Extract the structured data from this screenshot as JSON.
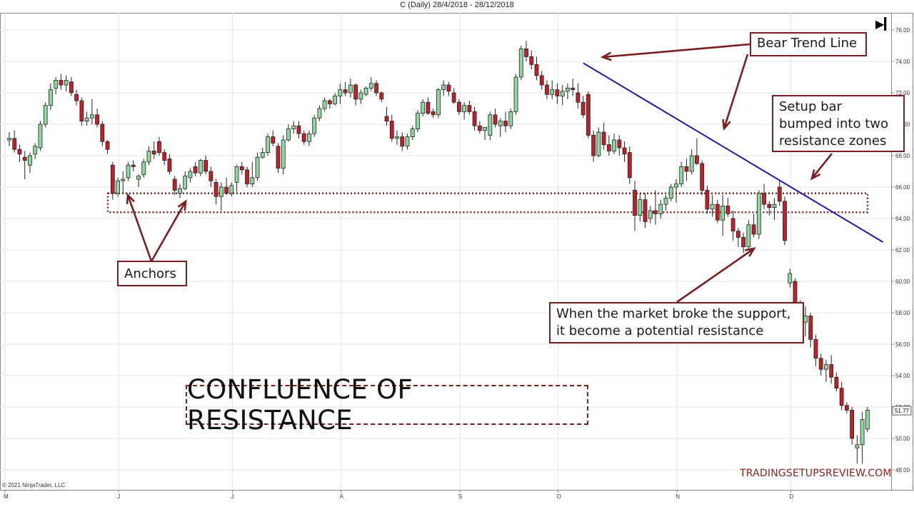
{
  "header": {
    "title": "C (Daily)  28/4/2018 - 28/12/2018"
  },
  "nav": {
    "end_icon": "skip-to-end-icon"
  },
  "copyright": "© 2021 NinjaTrader, LLC",
  "watermark": "TRADINGSETUPSREVIEW.COM",
  "title_box": "CONFLUENCE OF RESISTANCE",
  "annotations": {
    "bear_trend_line": "Bear Trend Line",
    "setup_bar": [
      "Setup bar",
      "bumped into two",
      "resistance zones"
    ],
    "anchors": "Anchors",
    "support_resistance": [
      "When the market broke the support,",
      "it become a potential resistance"
    ]
  },
  "colors": {
    "bull": "#8fd8a0",
    "bear": "#c0202a",
    "trend_line": "#1a1aa8",
    "annotation": "#7a1f1f"
  },
  "chart_data": {
    "type": "candlestick",
    "title": "C (Daily)  28/4/2018 - 28/12/2018",
    "y_ticks": [
      "76.00",
      "74.00",
      "72.00",
      "70.00",
      "68.00",
      "66.00",
      "64.00",
      "62.00",
      "60.00",
      "58.00",
      "56.00",
      "54.00",
      "52.00",
      "50.00",
      "48.00"
    ],
    "ylim": [
      47.3,
      77.0
    ],
    "x_labels": [
      {
        "label": "M",
        "index": 0
      },
      {
        "label": "J",
        "index": 22
      },
      {
        "label": "J",
        "index": 44
      },
      {
        "label": "A",
        "index": 65
      },
      {
        "label": "S",
        "index": 88
      },
      {
        "label": "O",
        "index": 107
      },
      {
        "label": "N",
        "index": 130
      },
      {
        "label": "D",
        "index": 152
      }
    ],
    "last_price": "51.77",
    "resistance_zone": [
      64.4,
      65.6
    ],
    "trend_line": {
      "from": {
        "index": 111,
        "price": 73.9
      },
      "to": {
        "index": 169,
        "price": 62.5
      }
    },
    "candles": [
      [
        69.0,
        69.5,
        68.6,
        69.1
      ],
      [
        69.1,
        69.6,
        68.2,
        68.4
      ],
      [
        68.4,
        68.7,
        67.6,
        68.1
      ],
      [
        67.9,
        68.3,
        66.5,
        67.7
      ],
      [
        67.4,
        68.2,
        66.9,
        68.0
      ],
      [
        68.1,
        68.8,
        67.8,
        68.6
      ],
      [
        68.5,
        70.2,
        68.3,
        70.0
      ],
      [
        70.0,
        71.4,
        69.8,
        71.2
      ],
      [
        71.2,
        72.6,
        70.9,
        72.2
      ],
      [
        72.3,
        73.0,
        71.9,
        72.8
      ],
      [
        72.8,
        73.2,
        72.2,
        72.5
      ],
      [
        72.5,
        73.1,
        72.1,
        72.8
      ],
      [
        72.7,
        73.0,
        71.8,
        72.0
      ],
      [
        71.9,
        72.2,
        71.2,
        71.5
      ],
      [
        71.5,
        71.7,
        69.9,
        70.2
      ],
      [
        70.2,
        70.8,
        69.9,
        70.4
      ],
      [
        70.4,
        71.6,
        70.0,
        70.6
      ],
      [
        70.6,
        71.0,
        69.8,
        70.0
      ],
      [
        70.0,
        70.2,
        68.6,
        68.9
      ],
      [
        68.9,
        69.0,
        68.1,
        68.4
      ],
      [
        67.4,
        67.6,
        65.2,
        65.6
      ],
      [
        65.6,
        66.6,
        65.4,
        66.4
      ],
      [
        66.4,
        67.0,
        65.6,
        66.5
      ],
      [
        66.6,
        67.6,
        66.4,
        67.4
      ],
      [
        67.4,
        67.7,
        67.0,
        67.3
      ],
      [
        66.5,
        66.8,
        66.0,
        66.7
      ],
      [
        66.8,
        67.8,
        66.6,
        67.6
      ],
      [
        67.6,
        68.6,
        67.4,
        68.3
      ],
      [
        68.3,
        68.9,
        67.8,
        68.1
      ],
      [
        68.9,
        69.2,
        68.0,
        68.2
      ],
      [
        68.2,
        68.4,
        67.4,
        67.7
      ],
      [
        67.8,
        68.1,
        66.8,
        67.0
      ],
      [
        66.5,
        66.7,
        65.5,
        65.8
      ],
      [
        65.6,
        66.2,
        65.3,
        65.9
      ],
      [
        65.9,
        67.0,
        65.8,
        66.7
      ],
      [
        66.6,
        67.2,
        66.3,
        67.0
      ],
      [
        67.3,
        67.6,
        66.7,
        66.9
      ],
      [
        66.9,
        67.8,
        66.7,
        67.7
      ],
      [
        67.7,
        68.0,
        66.8,
        67.0
      ],
      [
        67.0,
        67.3,
        66.0,
        66.4
      ],
      [
        66.3,
        66.5,
        64.9,
        65.4
      ],
      [
        65.4,
        66.3,
        64.5,
        66.0
      ],
      [
        66.0,
        66.6,
        65.5,
        65.6
      ],
      [
        65.6,
        66.3,
        65.4,
        66.1
      ],
      [
        66.3,
        67.4,
        65.7,
        67.3
      ],
      [
        67.3,
        67.6,
        66.8,
        67.1
      ],
      [
        67.1,
        67.3,
        66.0,
        66.2
      ],
      [
        66.2,
        67.6,
        66.0,
        66.6
      ],
      [
        66.6,
        68.2,
        66.4,
        67.9
      ],
      [
        67.9,
        68.5,
        67.8,
        68.2
      ],
      [
        68.2,
        69.4,
        68.0,
        69.2
      ],
      [
        69.2,
        69.6,
        68.6,
        68.8
      ],
      [
        68.6,
        68.8,
        66.9,
        67.2
      ],
      [
        67.2,
        69.3,
        66.8,
        69.0
      ],
      [
        69.0,
        70.0,
        68.9,
        69.7
      ],
      [
        69.7,
        70.2,
        69.4,
        69.9
      ],
      [
        69.9,
        70.2,
        69.1,
        69.4
      ],
      [
        69.4,
        69.6,
        68.7,
        68.9
      ],
      [
        68.9,
        69.6,
        68.6,
        69.4
      ],
      [
        69.4,
        70.6,
        69.2,
        70.4
      ],
      [
        70.4,
        71.2,
        70.2,
        71.0
      ],
      [
        71.0,
        71.7,
        70.8,
        71.5
      ],
      [
        71.5,
        71.6,
        71.0,
        71.3
      ],
      [
        71.3,
        72.0,
        71.2,
        71.8
      ],
      [
        71.8,
        72.6,
        71.3,
        72.2
      ],
      [
        72.2,
        72.7,
        71.8,
        72.0
      ],
      [
        72.0,
        72.9,
        71.7,
        72.5
      ],
      [
        72.5,
        72.6,
        71.2,
        71.6
      ],
      [
        71.6,
        72.2,
        71.3,
        72.0
      ],
      [
        71.9,
        72.4,
        71.8,
        72.3
      ],
      [
        72.3,
        73.0,
        72.1,
        72.6
      ],
      [
        72.6,
        72.8,
        71.8,
        72.0
      ],
      [
        72.0,
        72.1,
        71.4,
        71.6
      ],
      [
        70.5,
        71.1,
        69.9,
        70.2
      ],
      [
        70.2,
        70.6,
        68.9,
        69.1
      ],
      [
        69.1,
        69.6,
        68.7,
        69.2
      ],
      [
        69.2,
        69.5,
        68.3,
        68.6
      ],
      [
        68.6,
        69.4,
        68.4,
        69.2
      ],
      [
        69.2,
        69.9,
        69.0,
        69.7
      ],
      [
        69.7,
        70.9,
        69.5,
        70.7
      ],
      [
        70.7,
        71.6,
        70.5,
        71.4
      ],
      [
        71.4,
        71.7,
        70.6,
        70.7
      ],
      [
        70.8,
        71.0,
        70.4,
        70.6
      ],
      [
        70.6,
        72.3,
        70.4,
        72.2
      ],
      [
        72.2,
        72.8,
        71.8,
        72.5
      ],
      [
        72.5,
        72.7,
        71.8,
        72.1
      ],
      [
        72.0,
        72.3,
        71.3,
        71.4
      ],
      [
        71.4,
        71.6,
        70.6,
        70.8
      ],
      [
        70.8,
        71.4,
        70.3,
        71.2
      ],
      [
        71.2,
        71.5,
        70.6,
        70.8
      ],
      [
        70.8,
        71.1,
        69.6,
        69.9
      ],
      [
        69.9,
        70.2,
        69.4,
        69.6
      ],
      [
        69.6,
        69.8,
        69.0,
        69.8
      ],
      [
        69.3,
        70.8,
        69.0,
        70.6
      ],
      [
        70.6,
        71.0,
        69.8,
        70.0
      ],
      [
        69.9,
        70.4,
        69.2,
        70.2
      ],
      [
        70.2,
        70.8,
        69.5,
        69.9
      ],
      [
        69.9,
        71.0,
        69.7,
        70.8
      ],
      [
        70.8,
        73.2,
        70.6,
        73.0
      ],
      [
        73.0,
        75.0,
        72.8,
        74.8
      ],
      [
        74.8,
        75.3,
        74.0,
        74.3
      ],
      [
        74.3,
        74.7,
        73.5,
        73.8
      ],
      [
        73.8,
        74.3,
        72.8,
        73.1
      ],
      [
        73.1,
        73.4,
        72.2,
        72.5
      ],
      [
        72.5,
        72.8,
        71.6,
        71.9
      ],
      [
        71.9,
        72.8,
        71.6,
        72.2
      ],
      [
        72.2,
        72.6,
        71.3,
        71.8
      ],
      [
        71.8,
        72.5,
        71.2,
        72.1
      ],
      [
        72.1,
        72.6,
        71.6,
        72.3
      ],
      [
        72.3,
        72.9,
        71.8,
        72.2
      ],
      [
        72.0,
        72.6,
        71.0,
        71.4
      ],
      [
        71.4,
        71.8,
        70.4,
        70.6
      ],
      [
        71.9,
        72.1,
        69.1,
        69.3
      ],
      [
        69.3,
        69.6,
        67.6,
        68.0
      ],
      [
        68.0,
        69.8,
        67.9,
        69.5
      ],
      [
        69.5,
        70.1,
        68.4,
        68.7
      ],
      [
        68.7,
        69.3,
        68.0,
        68.3
      ],
      [
        68.3,
        69.4,
        68.1,
        69.0
      ],
      [
        69.0,
        69.3,
        68.0,
        68.5
      ],
      [
        68.5,
        68.9,
        67.6,
        68.1
      ],
      [
        68.2,
        68.6,
        66.2,
        66.6
      ],
      [
        65.8,
        66.4,
        63.2,
        64.2
      ],
      [
        64.2,
        65.6,
        63.8,
        65.2
      ],
      [
        65.2,
        65.6,
        63.4,
        63.8
      ],
      [
        64.0,
        64.8,
        63.7,
        64.5
      ],
      [
        64.5,
        65.8,
        63.6,
        64.3
      ],
      [
        64.3,
        65.2,
        64.0,
        64.9
      ],
      [
        64.9,
        65.5,
        64.5,
        65.3
      ],
      [
        65.3,
        66.2,
        65.1,
        66.0
      ],
      [
        66.0,
        66.5,
        65.0,
        66.2
      ],
      [
        66.2,
        67.6,
        66.0,
        67.3
      ],
      [
        67.3,
        67.8,
        66.4,
        67.0
      ],
      [
        67.0,
        68.4,
        66.8,
        68.0
      ],
      [
        68.0,
        69.1,
        67.4,
        67.5
      ],
      [
        67.5,
        67.7,
        65.5,
        65.8
      ],
      [
        65.8,
        66.1,
        64.3,
        64.6
      ],
      [
        64.6,
        65.5,
        64.1,
        64.9
      ],
      [
        64.9,
        65.2,
        63.7,
        63.9
      ],
      [
        63.9,
        65.5,
        62.9,
        64.8
      ],
      [
        64.8,
        65.3,
        64.1,
        64.3
      ],
      [
        64.0,
        64.5,
        62.6,
        63.2
      ],
      [
        63.2,
        63.4,
        62.2,
        62.8
      ],
      [
        62.8,
        63.1,
        61.8,
        62.2
      ],
      [
        62.2,
        63.9,
        62.0,
        63.6
      ],
      [
        63.6,
        64.3,
        62.8,
        63.0
      ],
      [
        63.0,
        65.8,
        62.7,
        65.6
      ],
      [
        65.6,
        66.2,
        64.6,
        64.9
      ],
      [
        64.9,
        65.1,
        64.2,
        64.7
      ],
      [
        64.7,
        65.3,
        63.9,
        64.9
      ],
      [
        66.0,
        66.4,
        64.8,
        65.1
      ],
      [
        65.1,
        65.4,
        62.3,
        62.6
      ],
      [
        59.9,
        60.8,
        59.6,
        60.5
      ],
      [
        60.0,
        60.2,
        58.3,
        58.6
      ],
      [
        58.6,
        58.8,
        56.2,
        56.6
      ],
      [
        57.4,
        58.4,
        56.5,
        57.8
      ],
      [
        57.8,
        58.0,
        55.8,
        56.3
      ],
      [
        56.3,
        56.6,
        54.6,
        55.1
      ],
      [
        55.1,
        55.4,
        54.0,
        54.4
      ],
      [
        54.4,
        55.0,
        53.6,
        54.7
      ],
      [
        54.7,
        55.3,
        53.5,
        53.9
      ],
      [
        53.9,
        54.2,
        53.0,
        53.2
      ],
      [
        53.2,
        53.6,
        51.8,
        52.1
      ],
      [
        52.1,
        52.3,
        51.6,
        51.8
      ],
      [
        51.8,
        52.0,
        49.6,
        50.0
      ],
      [
        49.4,
        50.2,
        48.4,
        49.6
      ],
      [
        49.6,
        51.7,
        48.4,
        51.2
      ],
      [
        50.6,
        52.0,
        50.4,
        51.8
      ]
    ]
  }
}
